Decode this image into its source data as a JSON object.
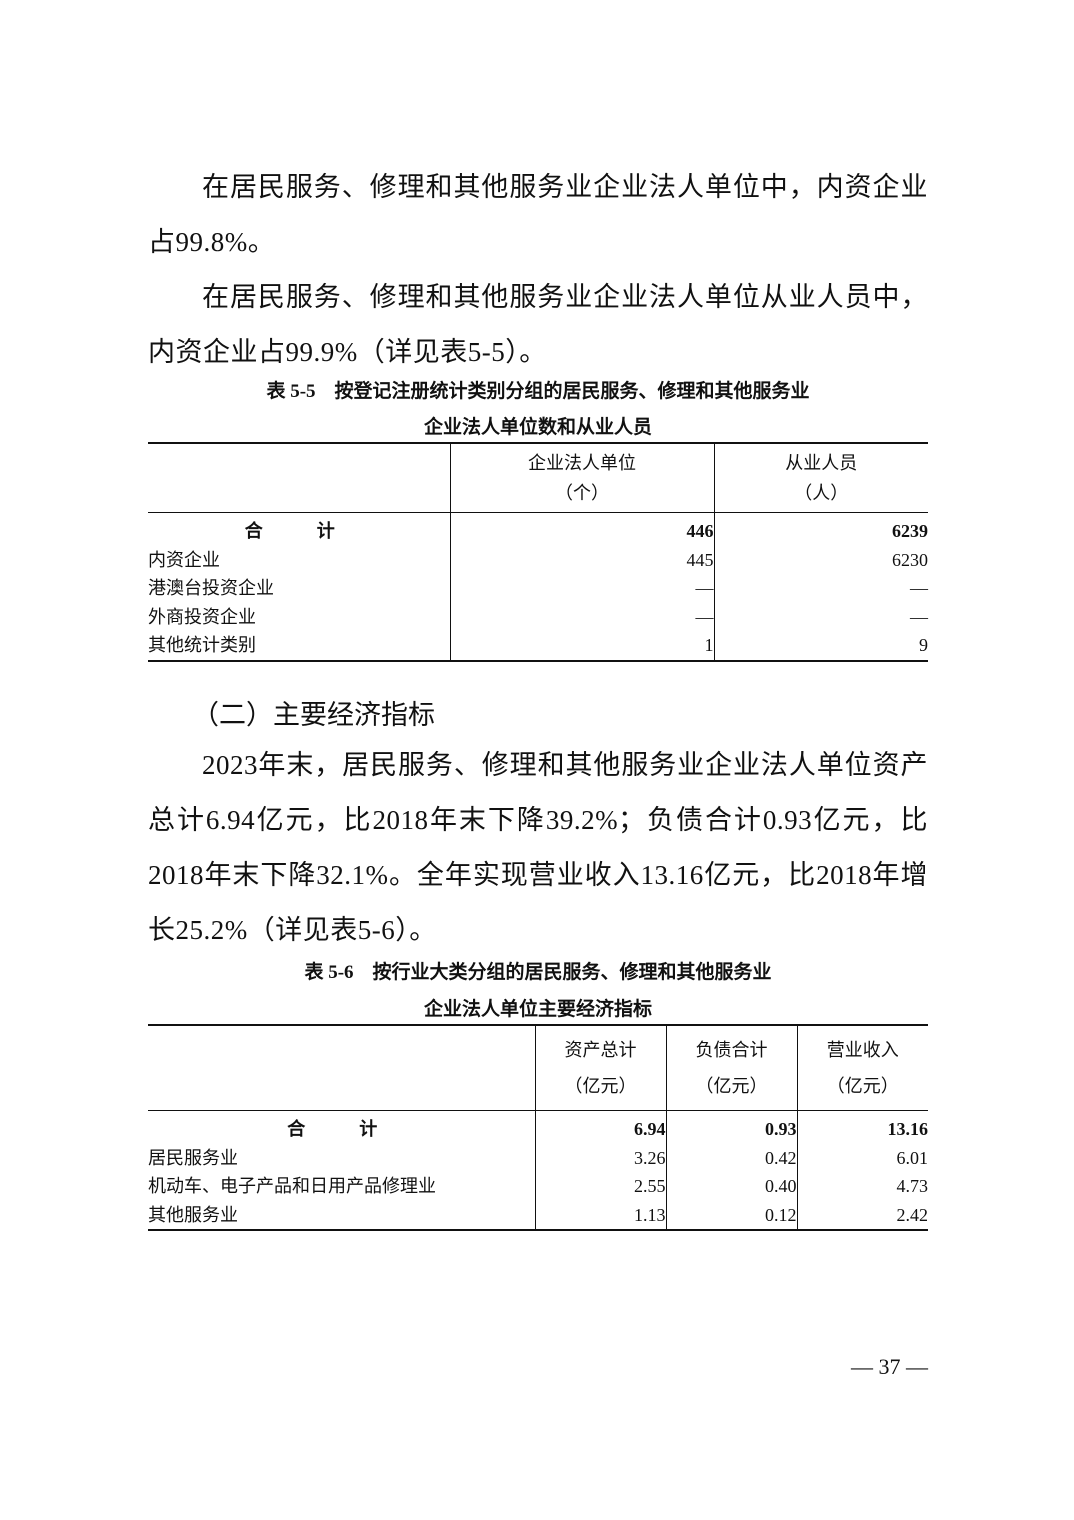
{
  "paragraphs_top": [
    "在居民服务、修理和其他服务业企业法人单位中，内资企业占99.8%。",
    "在居民服务、修理和其他服务业企业法人单位从业人员中，内资企业占99.9%（详见表5-5）。"
  ],
  "table_5_5": {
    "title_line1": "表 5-5　按登记注册统计类别分组的居民服务、修理和其他服务业",
    "title_line2": "企业法人单位数和从业人员",
    "columns": [
      {
        "name": "企业法人单位",
        "unit": "（个）"
      },
      {
        "name": "从业人员",
        "unit": "（人）"
      }
    ],
    "rows": [
      {
        "label": "合　计",
        "values": [
          "446",
          "6239"
        ],
        "total": true
      },
      {
        "label": "内资企业",
        "values": [
          "445",
          "6230"
        ]
      },
      {
        "label": "港澳台投资企业",
        "values": [
          "—",
          "—"
        ]
      },
      {
        "label": "外商投资企业",
        "values": [
          "—",
          "—"
        ]
      },
      {
        "label": "其他统计类别",
        "values": [
          "1",
          "9"
        ]
      }
    ]
  },
  "section_heading": "（二）主要经济指标",
  "paragraph_econ": "2023年末，居民服务、修理和其他服务业企业法人单位资产总计6.94亿元，比2018年末下降39.2%；负债合计0.93亿元，比2018年末下降32.1%。全年实现营业收入13.16亿元，比2018年增长25.2%（详见表5-6）。",
  "table_5_6": {
    "title_line1": "表 5-6　按行业大类分组的居民服务、修理和其他服务业",
    "title_line2": "企业法人单位主要经济指标",
    "columns": [
      {
        "name": "资产总计",
        "unit": "（亿元）"
      },
      {
        "name": "负债合计",
        "unit": "（亿元）"
      },
      {
        "name": "营业收入",
        "unit": "（亿元）"
      }
    ],
    "rows": [
      {
        "label": "合　计",
        "values": [
          "6.94",
          "0.93",
          "13.16"
        ],
        "total": true
      },
      {
        "label": "居民服务业",
        "values": [
          "3.26",
          "0.42",
          "6.01"
        ]
      },
      {
        "label": "机动车、电子产品和日用产品修理业",
        "values": [
          "2.55",
          "0.40",
          "4.73"
        ]
      },
      {
        "label": "其他服务业",
        "values": [
          "1.13",
          "0.12",
          "2.42"
        ]
      }
    ]
  },
  "page_number": "— 37 —"
}
